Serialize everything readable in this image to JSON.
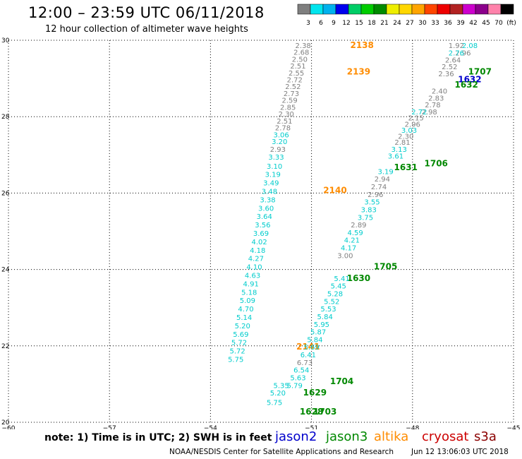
{
  "header": {
    "title": "12:00 – 23:59 UTC 06/11/2018",
    "subtitle": "12 hour collection of altimeter wave heights"
  },
  "colorbar": {
    "labels": [
      "3",
      "6",
      "9",
      "12",
      "15",
      "18",
      "21",
      "24",
      "27",
      "30",
      "33",
      "36",
      "39",
      "42",
      "45",
      "70",
      "(ft)"
    ],
    "colors": [
      "#7f7f7f",
      "#00e5ee",
      "#00b2ee",
      "#0000ee",
      "#00cd66",
      "#00cd00",
      "#008b00",
      "#eeee00",
      "#ffd700",
      "#ffa500",
      "#ff4500",
      "#ee0000",
      "#b22222",
      "#cd00cd",
      "#8b008b",
      "#ff82ab",
      "#000000"
    ]
  },
  "footer": {
    "note": "note: 1) Time is in UTC; 2) SWH is in feet",
    "legend": [
      {
        "name": "jason2",
        "color": "#0000cc"
      },
      {
        "name": "jason3",
        "color": "#008800"
      },
      {
        "name": "altika",
        "color": "#ff8c00"
      },
      {
        "name": "cryosat",
        "color": "#cc0000"
      },
      {
        "name": "s3a",
        "color": "#8b0000"
      }
    ],
    "credit": "NOAA/NESDIS Center for Satellite Applications and Research",
    "timestamp": "Jun 12 13:06:03 UTC 2018"
  },
  "chart_data": {
    "type": "scatter",
    "title": "12:00 – 23:59 UTC 06/11/2018",
    "subtitle": "12 hour collection of altimeter wave heights",
    "xlim": [
      -60,
      -45
    ],
    "ylim": [
      20,
      30
    ],
    "x_ticks": [
      -60,
      -57,
      -54,
      -51,
      -48,
      -45
    ],
    "y_ticks": [
      20,
      22,
      24,
      26,
      28,
      30
    ],
    "x_tick_labels": [
      "−60",
      "−57",
      "−54",
      "−51",
      "−48",
      "−45"
    ],
    "y_tick_labels": [
      "20",
      "22",
      "24",
      "26",
      "28",
      "30"
    ],
    "grid": true,
    "series": [
      {
        "name": "altika",
        "color": "#ff8c00",
        "points": [
          {
            "x": -51.4,
            "y": 28.0,
            "label": ""
          }
        ]
      }
    ],
    "labels": [
      {
        "lon": -51.25,
        "lat": 29.8,
        "text": "2.38",
        "color": "#808080"
      },
      {
        "lon": -51.3,
        "lat": 29.62,
        "text": "2.68",
        "color": "#808080"
      },
      {
        "lon": -51.35,
        "lat": 29.44,
        "text": "2.50",
        "color": "#808080"
      },
      {
        "lon": -51.4,
        "lat": 29.26,
        "text": "2.51",
        "color": "#808080"
      },
      {
        "lon": -51.45,
        "lat": 29.08,
        "text": "2.55",
        "color": "#808080"
      },
      {
        "lon": -51.5,
        "lat": 28.9,
        "text": "2.72",
        "color": "#808080"
      },
      {
        "lon": -51.55,
        "lat": 28.72,
        "text": "2.52",
        "color": "#808080"
      },
      {
        "lon": -51.6,
        "lat": 28.54,
        "text": "2.73",
        "color": "#808080"
      },
      {
        "lon": -51.65,
        "lat": 28.36,
        "text": "2.59",
        "color": "#808080"
      },
      {
        "lon": -51.7,
        "lat": 28.18,
        "text": "2.85",
        "color": "#808080"
      },
      {
        "lon": -51.75,
        "lat": 28.0,
        "text": "2.30",
        "color": "#808080"
      },
      {
        "lon": -51.8,
        "lat": 27.82,
        "text": "2.51",
        "color": "#808080"
      },
      {
        "lon": -51.85,
        "lat": 27.64,
        "text": "2.78",
        "color": "#808080"
      },
      {
        "lon": -51.9,
        "lat": 27.46,
        "text": "3.06",
        "color": "#00cccc"
      },
      {
        "lon": -51.95,
        "lat": 27.28,
        "text": "3.20",
        "color": "#00cccc"
      },
      {
        "lon": -52.0,
        "lat": 27.08,
        "text": "2.93",
        "color": "#808080"
      },
      {
        "lon": -52.05,
        "lat": 26.88,
        "text": "3.33",
        "color": "#00cccc"
      },
      {
        "lon": -52.1,
        "lat": 26.64,
        "text": "3.10",
        "color": "#00cccc"
      },
      {
        "lon": -52.15,
        "lat": 26.42,
        "text": "3.19",
        "color": "#00cccc"
      },
      {
        "lon": -52.2,
        "lat": 26.2,
        "text": "3.49",
        "color": "#00cccc"
      },
      {
        "lon": -52.25,
        "lat": 25.98,
        "text": "3.48",
        "color": "#00cccc"
      },
      {
        "lon": -52.3,
        "lat": 25.76,
        "text": "3.38",
        "color": "#00cccc"
      },
      {
        "lon": -52.35,
        "lat": 25.54,
        "text": "3.60",
        "color": "#00cccc"
      },
      {
        "lon": -52.4,
        "lat": 25.32,
        "text": "3.64",
        "color": "#00cccc"
      },
      {
        "lon": -52.45,
        "lat": 25.1,
        "text": "3.56",
        "color": "#00cccc"
      },
      {
        "lon": -52.5,
        "lat": 24.88,
        "text": "3.69",
        "color": "#00cccc"
      },
      {
        "lon": -52.55,
        "lat": 24.66,
        "text": "4.02",
        "color": "#00cccc"
      },
      {
        "lon": -52.6,
        "lat": 24.44,
        "text": "4.18",
        "color": "#00cccc"
      },
      {
        "lon": -52.65,
        "lat": 24.22,
        "text": "4.27",
        "color": "#00cccc"
      },
      {
        "lon": -52.7,
        "lat": 24.0,
        "text": "4.10",
        "color": "#00cccc"
      },
      {
        "lon": -52.75,
        "lat": 23.78,
        "text": "4.63",
        "color": "#00cccc"
      },
      {
        "lon": -52.8,
        "lat": 23.56,
        "text": "4.91",
        "color": "#00cccc"
      },
      {
        "lon": -52.85,
        "lat": 23.34,
        "text": "5.18",
        "color": "#00cccc"
      },
      {
        "lon": -52.9,
        "lat": 23.12,
        "text": "5.09",
        "color": "#00cccc"
      },
      {
        "lon": -52.95,
        "lat": 22.9,
        "text": "4.70",
        "color": "#00cccc"
      },
      {
        "lon": -53.0,
        "lat": 22.68,
        "text": "5.14",
        "color": "#00cccc"
      },
      {
        "lon": -53.05,
        "lat": 22.46,
        "text": "5.20",
        "color": "#00cccc"
      },
      {
        "lon": -53.1,
        "lat": 22.24,
        "text": "5.69",
        "color": "#00cccc"
      },
      {
        "lon": -53.15,
        "lat": 22.02,
        "text": "5.72",
        "color": "#00cccc"
      },
      {
        "lon": -53.2,
        "lat": 21.8,
        "text": "5.72",
        "color": "#00cccc"
      },
      {
        "lon": -53.25,
        "lat": 21.58,
        "text": "5.75",
        "color": "#00cccc"
      },
      {
        "lon": -49.5,
        "lat": 29.8,
        "text": "2138",
        "color": "#ff8c00"
      },
      {
        "lon": -49.6,
        "lat": 29.1,
        "text": "2139",
        "color": "#ff8c00"
      },
      {
        "lon": -50.3,
        "lat": 26.0,
        "text": "2140",
        "color": "#ff8c00"
      },
      {
        "lon": -51.1,
        "lat": 21.9,
        "text": "2141",
        "color": "#ff8c00"
      },
      {
        "lon": -46.7,
        "lat": 29.8,
        "text": "1.92",
        "color": "#808080"
      },
      {
        "lon": -46.3,
        "lat": 29.8,
        "text": "2.08",
        "color": "#00cccc"
      },
      {
        "lon": -46.5,
        "lat": 29.6,
        "text": "2.96",
        "color": "#808080"
      },
      {
        "lon": -46.7,
        "lat": 29.6,
        "text": "2.76",
        "color": "#00cccc"
      },
      {
        "lon": -46.8,
        "lat": 29.42,
        "text": "2.64",
        "color": "#808080"
      },
      {
        "lon": -46.9,
        "lat": 29.24,
        "text": "2.52",
        "color": "#808080"
      },
      {
        "lon": -47.0,
        "lat": 29.06,
        "text": "2.36",
        "color": "#808080"
      },
      {
        "lon": -46.0,
        "lat": 29.1,
        "text": "1707",
        "color": "#008800"
      },
      {
        "lon": -46.3,
        "lat": 28.9,
        "text": "1632",
        "color": "#0000cc"
      },
      {
        "lon": -46.4,
        "lat": 28.76,
        "text": "1632",
        "color": "#008800"
      },
      {
        "lon": -47.2,
        "lat": 28.6,
        "text": "2.40",
        "color": "#808080"
      },
      {
        "lon": -47.3,
        "lat": 28.42,
        "text": "2.83",
        "color": "#808080"
      },
      {
        "lon": -47.4,
        "lat": 28.24,
        "text": "2.78",
        "color": "#808080"
      },
      {
        "lon": -47.5,
        "lat": 28.06,
        "text": "2.98",
        "color": "#808080"
      },
      {
        "lon": -47.8,
        "lat": 28.06,
        "text": "2.72",
        "color": "#00cccc"
      },
      {
        "lon": -47.9,
        "lat": 27.9,
        "text": "2.15",
        "color": "#808080"
      },
      {
        "lon": -48.0,
        "lat": 27.74,
        "text": "2.96",
        "color": "#808080"
      },
      {
        "lon": -48.1,
        "lat": 27.58,
        "text": "3.03",
        "color": "#00cccc"
      },
      {
        "lon": -48.2,
        "lat": 27.42,
        "text": "2.30",
        "color": "#808080"
      },
      {
        "lon": -48.3,
        "lat": 27.26,
        "text": "2.81",
        "color": "#808080"
      },
      {
        "lon": -48.4,
        "lat": 27.08,
        "text": "3.13",
        "color": "#00cccc"
      },
      {
        "lon": -48.5,
        "lat": 26.9,
        "text": "3.61",
        "color": "#00cccc"
      },
      {
        "lon": -47.3,
        "lat": 26.7,
        "text": "1706",
        "color": "#008800"
      },
      {
        "lon": -48.2,
        "lat": 26.6,
        "text": "1631",
        "color": "#008800"
      },
      {
        "lon": -48.8,
        "lat": 26.5,
        "text": "3.19",
        "color": "#00cccc"
      },
      {
        "lon": -48.9,
        "lat": 26.3,
        "text": "2.94",
        "color": "#808080"
      },
      {
        "lon": -49.0,
        "lat": 26.1,
        "text": "2.74",
        "color": "#808080"
      },
      {
        "lon": -49.1,
        "lat": 25.9,
        "text": "2.96",
        "color": "#808080"
      },
      {
        "lon": -49.2,
        "lat": 25.7,
        "text": "3.55",
        "color": "#00cccc"
      },
      {
        "lon": -49.3,
        "lat": 25.5,
        "text": "3.83",
        "color": "#00cccc"
      },
      {
        "lon": -49.4,
        "lat": 25.3,
        "text": "3.75",
        "color": "#00cccc"
      },
      {
        "lon": -49.6,
        "lat": 25.1,
        "text": "2.89",
        "color": "#808080"
      },
      {
        "lon": -49.7,
        "lat": 24.9,
        "text": "4.59",
        "color": "#00cccc"
      },
      {
        "lon": -49.8,
        "lat": 24.7,
        "text": "4.21",
        "color": "#00cccc"
      },
      {
        "lon": -49.9,
        "lat": 24.5,
        "text": "4.17",
        "color": "#00cccc"
      },
      {
        "lon": -50.0,
        "lat": 24.3,
        "text": "3.00",
        "color": "#808080"
      },
      {
        "lon": -48.8,
        "lat": 24.0,
        "text": "1705",
        "color": "#008800"
      },
      {
        "lon": -49.6,
        "lat": 23.7,
        "text": "1630",
        "color": "#008800"
      },
      {
        "lon": -50.1,
        "lat": 23.7,
        "text": "5.41",
        "color": "#00cccc"
      },
      {
        "lon": -50.2,
        "lat": 23.5,
        "text": "5.45",
        "color": "#00cccc"
      },
      {
        "lon": -50.3,
        "lat": 23.3,
        "text": "5.28",
        "color": "#00cccc"
      },
      {
        "lon": -50.4,
        "lat": 23.1,
        "text": "5.52",
        "color": "#00cccc"
      },
      {
        "lon": -50.5,
        "lat": 22.9,
        "text": "5.53",
        "color": "#00cccc"
      },
      {
        "lon": -50.6,
        "lat": 22.7,
        "text": "5.84",
        "color": "#00cccc"
      },
      {
        "lon": -50.7,
        "lat": 22.5,
        "text": "5.95",
        "color": "#00cccc"
      },
      {
        "lon": -50.8,
        "lat": 22.3,
        "text": "5.87",
        "color": "#00cccc"
      },
      {
        "lon": -50.9,
        "lat": 22.1,
        "text": "5.84",
        "color": "#00cccc"
      },
      {
        "lon": -51.0,
        "lat": 21.9,
        "text": "5.69",
        "color": "#00cccc"
      },
      {
        "lon": -51.1,
        "lat": 21.7,
        "text": "6.41",
        "color": "#00cccc"
      },
      {
        "lon": -51.2,
        "lat": 21.5,
        "text": "6.73",
        "color": "#808080"
      },
      {
        "lon": -51.3,
        "lat": 21.3,
        "text": "6.54",
        "color": "#00cccc"
      },
      {
        "lon": -51.4,
        "lat": 21.1,
        "text": "5.63",
        "color": "#00cccc"
      },
      {
        "lon": -51.5,
        "lat": 20.9,
        "text": "5.79",
        "color": "#00cccc"
      },
      {
        "lon": -50.1,
        "lat": 21.0,
        "text": "1704",
        "color": "#008800"
      },
      {
        "lon": -50.9,
        "lat": 20.7,
        "text": "1629",
        "color": "#008800"
      },
      {
        "lon": -51.0,
        "lat": 20.2,
        "text": "1628",
        "color": "#008800"
      },
      {
        "lon": -50.6,
        "lat": 20.2,
        "text": "1703",
        "color": "#008800"
      },
      {
        "lon": -51.9,
        "lat": 20.9,
        "text": "5.35",
        "color": "#00cccc"
      },
      {
        "lon": -52.0,
        "lat": 20.7,
        "text": "5.20",
        "color": "#00cccc"
      },
      {
        "lon": -52.1,
        "lat": 20.45,
        "text": "5.75",
        "color": "#00cccc"
      }
    ]
  }
}
